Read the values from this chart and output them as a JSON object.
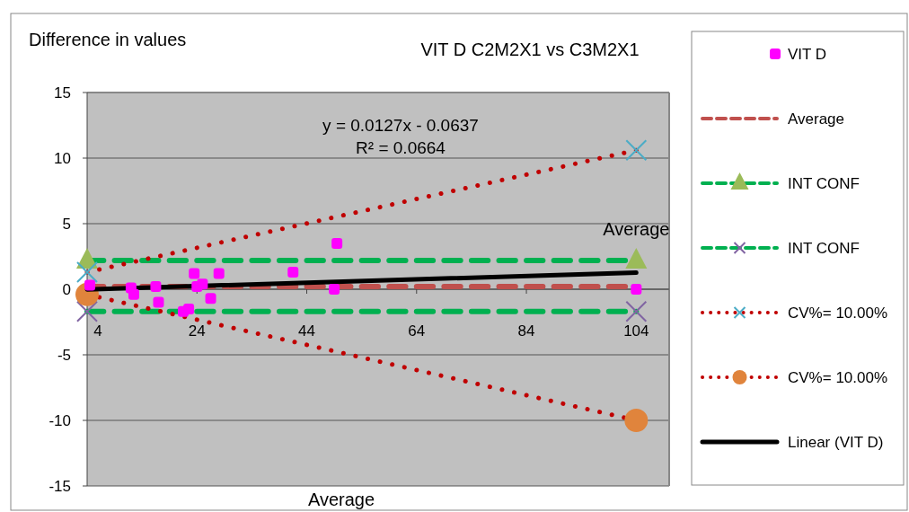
{
  "chart_data": {
    "type": "scatter",
    "title": "VIT D C2M2X1 vs C3M2X1",
    "xlabel": "Average",
    "ylabel": "Difference in values",
    "xlim": [
      4,
      110
    ],
    "xticks": [
      4,
      24,
      44,
      64,
      84,
      104
    ],
    "ylim": [
      -15,
      15
    ],
    "yticks": [
      -15,
      -10,
      -5,
      0,
      5,
      10,
      15
    ],
    "grid": "y",
    "legend": "right",
    "annotations": [
      {
        "text": "y = 0.0127x - 0.0637"
      },
      {
        "text": "R² = 0.0664"
      },
      {
        "text": "Average",
        "x": 104,
        "y": 2.2
      }
    ],
    "series": [
      {
        "name": "VIT D",
        "type": "scatter",
        "marker": "square",
        "color": "#ff00ff",
        "x": [
          4.5,
          12,
          12.5,
          16.5,
          17,
          21.5,
          22.5,
          23.5,
          24,
          25,
          26.5,
          28,
          41.5,
          49,
          49.5,
          104
        ],
        "values": [
          0.3,
          0.1,
          -0.4,
          0.2,
          -1.0,
          -1.7,
          -1.5,
          1.2,
          0.2,
          0.4,
          -0.7,
          1.2,
          1.3,
          0,
          3.5,
          0
        ]
      },
      {
        "name": "Average",
        "type": "line",
        "line_style": "dashed",
        "marker": "none",
        "color": "#c0504d",
        "x": [
          4,
          104
        ],
        "values": [
          0.2,
          0.2
        ]
      },
      {
        "name": "INT CONF",
        "type": "line",
        "line_style": "dashed",
        "marker": "triangle",
        "color": "#00b050",
        "colors": [
          "#9bbb59",
          "#9bbb59"
        ],
        "x": [
          4,
          104
        ],
        "values": [
          2.2,
          2.2
        ]
      },
      {
        "name": "INT CONF",
        "type": "line",
        "line_style": "dashed",
        "marker": "cross",
        "color": "#00b050",
        "colors": [
          "#8064a2",
          "#8064a2"
        ],
        "x": [
          4,
          104
        ],
        "values": [
          -1.7,
          -1.7
        ]
      },
      {
        "name": "CV%= 10.00%",
        "type": "line",
        "line_style": "dotted",
        "marker": "cross",
        "color": "#c00000",
        "colors": [
          "#4bacc6",
          "#4bacc6"
        ],
        "x": [
          4,
          104
        ],
        "values": [
          1.3,
          10.6
        ]
      },
      {
        "name": "CV%= 10.00%",
        "type": "line",
        "line_style": "dotted",
        "marker": "circle",
        "color": "#c00000",
        "colors": [
          "#e0843c",
          "#e0843c"
        ],
        "x": [
          4,
          104
        ],
        "values": [
          -0.4,
          -10
        ]
      },
      {
        "name": "Linear (VIT D)",
        "type": "line",
        "line_style": "solid",
        "marker": "none",
        "color": "#000000",
        "x": [
          4,
          104
        ],
        "values": [
          -0.01,
          1.26
        ]
      }
    ]
  }
}
